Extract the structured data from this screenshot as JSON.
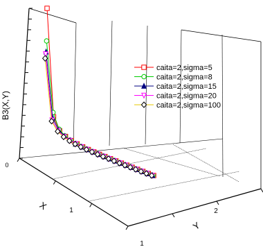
{
  "chart_data": {
    "type": "line",
    "projection": "3d",
    "title": "",
    "xlabel": "X",
    "ylabel": "Y",
    "zlabel": "B3(X,Y)",
    "x_ticks": [
      "1",
      "1"
    ],
    "y_ticks": [
      "2"
    ],
    "z_ticks": [
      "0"
    ],
    "grid": true,
    "legend_position": "right",
    "series": [
      {
        "name": "caita=2,sigma=5",
        "color": "#ff0000",
        "marker": "square",
        "values": [
          6.0,
          1.1,
          0.55,
          0.38,
          0.28,
          0.22,
          0.17,
          0.14,
          0.12,
          0.1,
          0.09,
          0.08,
          0.07,
          0.06,
          0.055,
          0.05,
          0.045,
          0.04,
          0.037,
          0.034
        ]
      },
      {
        "name": "caita=2,sigma=8",
        "color": "#00cc00",
        "marker": "circle",
        "values": [
          4.5,
          1.3,
          0.62,
          0.4,
          0.29,
          0.22,
          0.17,
          0.14,
          0.12,
          0.1,
          0.09,
          0.08,
          0.07,
          0.06,
          0.055,
          0.05,
          0.045,
          0.04,
          0.037,
          0.034
        ]
      },
      {
        "name": "caita=2,sigma=15",
        "color": "#000080",
        "marker": "triangle-up",
        "values": [
          4.0,
          1.05,
          0.58,
          0.39,
          0.29,
          0.22,
          0.17,
          0.14,
          0.12,
          0.1,
          0.09,
          0.08,
          0.07,
          0.06,
          0.055,
          0.05,
          0.045,
          0.04,
          0.037,
          0.034
        ]
      },
      {
        "name": "caita=2,sigma=20",
        "color": "#ff00ff",
        "marker": "triangle-down",
        "values": [
          3.9,
          0.95,
          0.55,
          0.37,
          0.28,
          0.22,
          0.17,
          0.14,
          0.12,
          0.1,
          0.09,
          0.08,
          0.07,
          0.06,
          0.055,
          0.05,
          0.045,
          0.04,
          0.037,
          0.034
        ]
      },
      {
        "name": "caita=2,sigma=100",
        "color": "#e6c800",
        "marker": "diamond",
        "values": [
          3.7,
          0.9,
          0.52,
          0.36,
          0.27,
          0.21,
          0.17,
          0.14,
          0.12,
          0.1,
          0.09,
          0.08,
          0.07,
          0.06,
          0.055,
          0.05,
          0.045,
          0.04,
          0.037,
          0.034
        ]
      }
    ]
  }
}
